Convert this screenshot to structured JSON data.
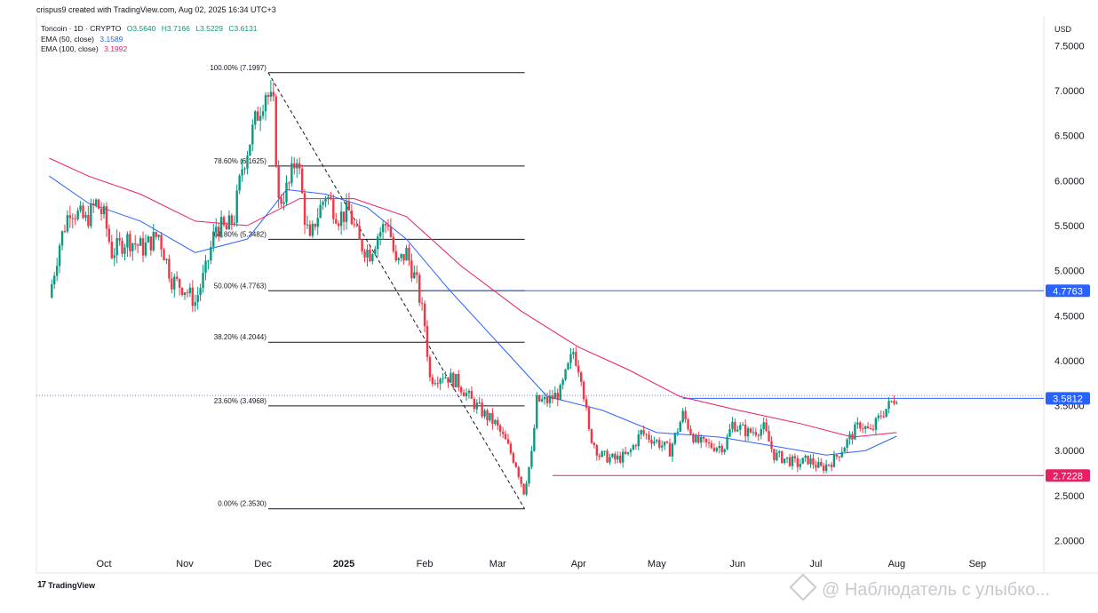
{
  "header": {
    "credit": "crispus9 created with TradingView.com, Aug 02, 2025 16:34 UTC+3",
    "symbol": "Toncoin · 1D · CRYPTO",
    "open": "O3.5640",
    "high": "H3.7166",
    "low": "L3.5229",
    "close": "C3.6131",
    "ema50_label": "EMA (50, close)",
    "ema50_value": "3.1589",
    "ema100_label": "EMA (100, close)",
    "ema100_value": "3.1992"
  },
  "currency": "USD",
  "footer": {
    "brand": "TradingView",
    "watermark": "@ Наблюдатель с улыбко..."
  },
  "colors": {
    "up": "#089981",
    "down": "#f23645",
    "ema50": "#2962ff",
    "ema100": "#e91e63",
    "level_blue": "#2962ff",
    "level_red": "#e91e63",
    "fib": "#131722"
  },
  "chart_data": {
    "type": "candlestick",
    "y_axis": {
      "min": 1.8,
      "max": 7.7,
      "ticks": [
        "2.0000",
        "2.5000",
        "3.0000",
        "3.5000",
        "4.0000",
        "4.5000",
        "5.0000",
        "5.5000",
        "6.0000",
        "6.5000",
        "7.0000",
        "7.5000"
      ]
    },
    "x_axis": {
      "ticks": [
        {
          "label": "Oct",
          "date": "2024-10-01"
        },
        {
          "label": "Nov",
          "date": "2024-11-01"
        },
        {
          "label": "Dec",
          "date": "2024-12-01"
        },
        {
          "label": "2025",
          "date": "2025-01-01"
        },
        {
          "label": "Feb",
          "date": "2025-02-01"
        },
        {
          "label": "Mar",
          "date": "2025-03-01"
        },
        {
          "label": "Apr",
          "date": "2025-04-01"
        },
        {
          "label": "May",
          "date": "2025-05-01"
        },
        {
          "label": "Jun",
          "date": "2025-06-01"
        },
        {
          "label": "Jul",
          "date": "2025-07-01"
        },
        {
          "label": "Aug",
          "date": "2025-08-01"
        },
        {
          "label": "Sep",
          "date": "2025-09-01"
        }
      ]
    },
    "price_path": [
      [
        "2024-09-10",
        4.7
      ],
      [
        "2024-09-14",
        5.3
      ],
      [
        "2024-09-18",
        5.7
      ],
      [
        "2024-09-24",
        5.55
      ],
      [
        "2024-09-28",
        5.75
      ],
      [
        "2024-10-01",
        5.6
      ],
      [
        "2024-10-04",
        5.2
      ],
      [
        "2024-10-10",
        5.35
      ],
      [
        "2024-10-16",
        5.25
      ],
      [
        "2024-10-22",
        5.4
      ],
      [
        "2024-10-27",
        4.9
      ],
      [
        "2024-11-01",
        4.8
      ],
      [
        "2024-11-05",
        4.65
      ],
      [
        "2024-11-09",
        5.0
      ],
      [
        "2024-11-13",
        5.5
      ],
      [
        "2024-11-17",
        5.45
      ],
      [
        "2024-11-20",
        5.6
      ],
      [
        "2024-11-23",
        6.15
      ],
      [
        "2024-11-26",
        6.45
      ],
      [
        "2024-11-29",
        6.75
      ],
      [
        "2024-12-02",
        7.0
      ],
      [
        "2024-12-05",
        6.8
      ],
      [
        "2024-12-07",
        5.75
      ],
      [
        "2024-12-11",
        5.95
      ],
      [
        "2024-12-14",
        6.3
      ],
      [
        "2024-12-17",
        5.6
      ],
      [
        "2024-12-19",
        5.3
      ],
      [
        "2024-12-21",
        5.55
      ],
      [
        "2024-12-25",
        5.85
      ],
      [
        "2024-12-30",
        5.6
      ],
      [
        "2025-01-03",
        5.65
      ],
      [
        "2025-01-07",
        5.3
      ],
      [
        "2025-01-11",
        5.2
      ],
      [
        "2025-01-14",
        5.4
      ],
      [
        "2025-01-18",
        5.55
      ],
      [
        "2025-01-21",
        5.05
      ],
      [
        "2025-01-25",
        5.2
      ],
      [
        "2025-01-29",
        4.85
      ],
      [
        "2025-02-01",
        4.4
      ],
      [
        "2025-02-03",
        3.8
      ],
      [
        "2025-02-08",
        3.85
      ],
      [
        "2025-02-14",
        3.75
      ],
      [
        "2025-02-19",
        3.55
      ],
      [
        "2025-02-24",
        3.4
      ],
      [
        "2025-02-28",
        3.3
      ],
      [
        "2025-03-04",
        3.1
      ],
      [
        "2025-03-08",
        2.85
      ],
      [
        "2025-03-11",
        2.55
      ],
      [
        "2025-03-14",
        2.95
      ],
      [
        "2025-03-16",
        3.55
      ],
      [
        "2025-03-20",
        3.55
      ],
      [
        "2025-03-25",
        3.65
      ],
      [
        "2025-03-30",
        4.1
      ],
      [
        "2025-04-02",
        3.85
      ],
      [
        "2025-04-05",
        3.2
      ],
      [
        "2025-04-09",
        2.95
      ],
      [
        "2025-04-15",
        2.9
      ],
      [
        "2025-04-20",
        2.95
      ],
      [
        "2025-04-25",
        3.2
      ],
      [
        "2025-05-01",
        3.1
      ],
      [
        "2025-05-06",
        3.0
      ],
      [
        "2025-05-11",
        3.4
      ],
      [
        "2025-05-16",
        3.1
      ],
      [
        "2025-05-22",
        3.05
      ],
      [
        "2025-05-27",
        3.05
      ],
      [
        "2025-05-30",
        3.3
      ],
      [
        "2025-06-05",
        3.2
      ],
      [
        "2025-06-11",
        3.25
      ],
      [
        "2025-06-15",
        2.95
      ],
      [
        "2025-06-20",
        2.9
      ],
      [
        "2025-06-24",
        2.85
      ],
      [
        "2025-06-28",
        2.9
      ],
      [
        "2025-07-03",
        2.8
      ],
      [
        "2025-07-08",
        2.9
      ],
      [
        "2025-07-13",
        3.1
      ],
      [
        "2025-07-18",
        3.3
      ],
      [
        "2025-07-22",
        3.2
      ],
      [
        "2025-07-26",
        3.4
      ],
      [
        "2025-07-29",
        3.5
      ],
      [
        "2025-08-01",
        3.61
      ]
    ],
    "ema50_path": [
      [
        "2024-09-10",
        6.05
      ],
      [
        "2024-09-25",
        5.75
      ],
      [
        "2024-10-15",
        5.55
      ],
      [
        "2024-11-05",
        5.2
      ],
      [
        "2024-11-25",
        5.35
      ],
      [
        "2024-12-10",
        5.9
      ],
      [
        "2024-12-25",
        5.85
      ],
      [
        "2025-01-10",
        5.7
      ],
      [
        "2025-01-25",
        5.35
      ],
      [
        "2025-02-10",
        4.8
      ],
      [
        "2025-03-01",
        4.2
      ],
      [
        "2025-03-20",
        3.6
      ],
      [
        "2025-04-10",
        3.45
      ],
      [
        "2025-05-01",
        3.2
      ],
      [
        "2025-05-25",
        3.15
      ],
      [
        "2025-06-15",
        3.05
      ],
      [
        "2025-07-05",
        2.95
      ],
      [
        "2025-07-20",
        3.0
      ],
      [
        "2025-08-01",
        3.16
      ]
    ],
    "ema100_path": [
      [
        "2024-09-10",
        6.25
      ],
      [
        "2024-09-25",
        6.05
      ],
      [
        "2024-10-15",
        5.85
      ],
      [
        "2024-11-05",
        5.55
      ],
      [
        "2024-11-25",
        5.5
      ],
      [
        "2024-12-15",
        5.8
      ],
      [
        "2025-01-05",
        5.8
      ],
      [
        "2025-01-25",
        5.6
      ],
      [
        "2025-02-15",
        5.05
      ],
      [
        "2025-03-10",
        4.55
      ],
      [
        "2025-04-01",
        4.15
      ],
      [
        "2025-04-20",
        3.9
      ],
      [
        "2025-05-10",
        3.6
      ],
      [
        "2025-06-01",
        3.45
      ],
      [
        "2025-06-25",
        3.3
      ],
      [
        "2025-07-15",
        3.15
      ],
      [
        "2025-08-01",
        3.2
      ]
    ],
    "fib_retracement": {
      "start_date": "2024-12-03",
      "end_date": "2025-03-11",
      "high": 7.1997,
      "low": 2.353,
      "levels": [
        {
          "label": "100.00% (7.1997)",
          "value": 7.1997
        },
        {
          "label": "78.60% (6.1625)",
          "value": 6.1625
        },
        {
          "label": "61.80% (5.3482)",
          "value": 5.3482
        },
        {
          "label": "50.00% (4.7763)",
          "value": 4.7763
        },
        {
          "label": "38.20% (4.2044)",
          "value": 4.2044
        },
        {
          "label": "23.60% (3.4968)",
          "value": 3.4968
        },
        {
          "label": "0.00% (2.3530)",
          "value": 2.353
        }
      ]
    },
    "horizontal_levels": [
      {
        "label": "4.7763",
        "value": 4.7763,
        "color": "#2962ff",
        "start_date": "2025-02-01"
      },
      {
        "label": "3.5812",
        "value": 3.5812,
        "color": "#2962ff",
        "start_date": "2025-05-11"
      },
      {
        "label": "2.7228",
        "value": 2.7228,
        "color": "#e91e63",
        "start_date": "2025-03-22"
      }
    ],
    "current_price": 3.6131
  }
}
